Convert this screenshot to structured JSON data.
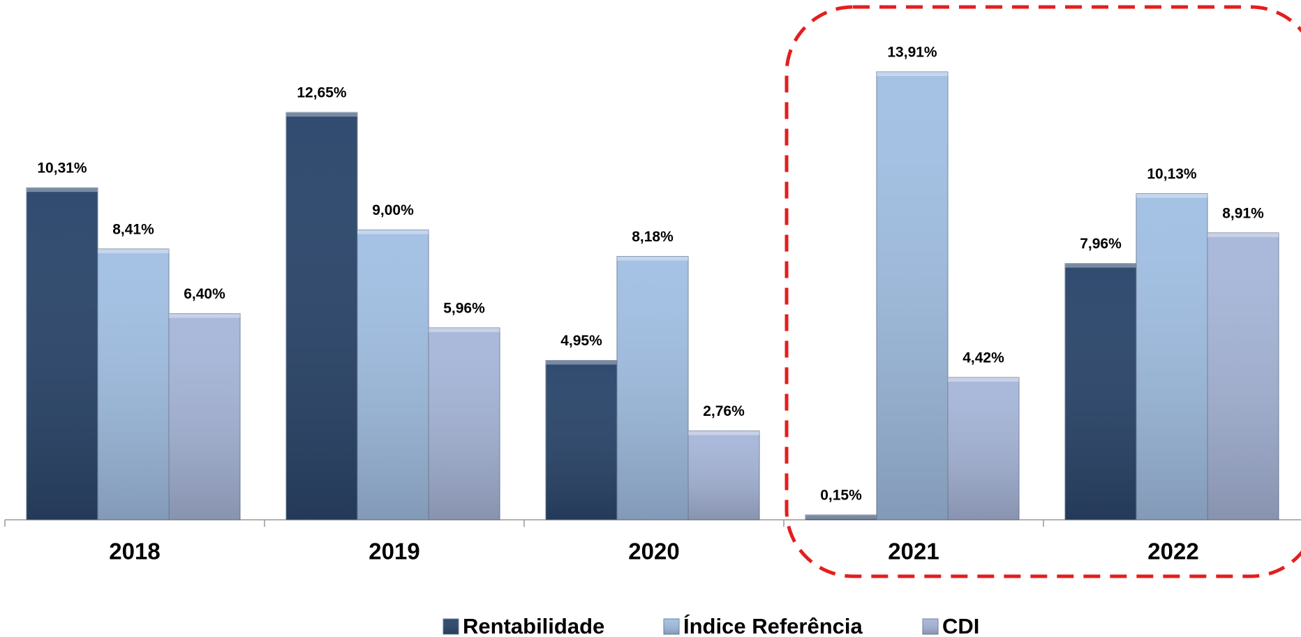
{
  "chart_data": {
    "type": "bar",
    "categories": [
      "2018",
      "2019",
      "2020",
      "2021",
      "2022"
    ],
    "series": [
      {
        "name": "Rentabilidade",
        "color": "#1f3c64",
        "values": [
          10.31,
          12.65,
          4.95,
          0.15,
          7.96
        ],
        "value_labels": [
          "10,31%",
          "12,65%",
          "4,95%",
          "0,15%",
          "7,96%"
        ]
      },
      {
        "name": "Índice Referência",
        "color": "#9dbde3",
        "values": [
          8.41,
          9.0,
          8.18,
          13.91,
          10.13
        ],
        "value_labels": [
          "8,41%",
          "9,00%",
          "8,18%",
          "13,91%",
          "10,13%"
        ]
      },
      {
        "name": "CDI",
        "color": "#a3b3d8",
        "values": [
          6.4,
          5.96,
          2.76,
          4.42,
          8.91
        ],
        "value_labels": [
          "6,40%",
          "5,96%",
          "2,76%",
          "4,42%",
          "8,91%"
        ]
      }
    ],
    "legend": "bottom"
  }
}
